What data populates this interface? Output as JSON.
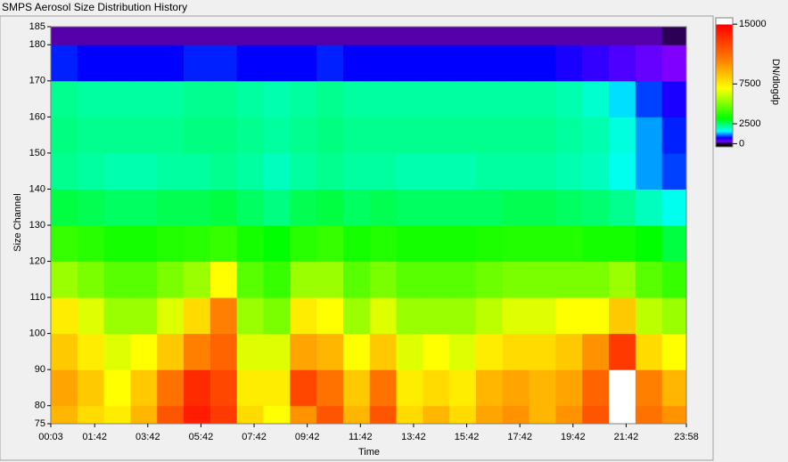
{
  "chart_data": {
    "type": "heatmap",
    "title": "SMPS Aerosol Size Distribution History",
    "xlabel": "Time",
    "ylabel": "Size Channel",
    "colorbar_label": "DN/dlogdp",
    "xlim": [
      3,
      1438
    ],
    "xticks": [
      {
        "value": 3,
        "label": "00:03"
      },
      {
        "value": 102,
        "label": "01:42"
      },
      {
        "value": 222,
        "label": "03:42"
      },
      {
        "value": 342,
        "label": "05:42"
      },
      {
        "value": 462,
        "label": "07:42"
      },
      {
        "value": 582,
        "label": "09:42"
      },
      {
        "value": 702,
        "label": "11:42"
      },
      {
        "value": 822,
        "label": "13:42"
      },
      {
        "value": 942,
        "label": "15:42"
      },
      {
        "value": 1062,
        "label": "17:42"
      },
      {
        "value": 1182,
        "label": "19:42"
      },
      {
        "value": 1302,
        "label": "21:42"
      },
      {
        "value": 1438,
        "label": "23:58"
      }
    ],
    "ylim": [
      75,
      185
    ],
    "yticks": [
      75,
      80,
      90,
      100,
      110,
      120,
      130,
      140,
      150,
      160,
      170,
      180,
      185
    ],
    "xbins": [
      3,
      63,
      123,
      183,
      243,
      303,
      363,
      423,
      483,
      543,
      603,
      663,
      723,
      783,
      843,
      903,
      963,
      1023,
      1083,
      1143,
      1203,
      1263,
      1323,
      1383,
      1438
    ],
    "ybins": [
      75,
      80,
      90,
      100,
      110,
      120,
      130,
      140,
      150,
      160,
      170,
      180,
      185
    ],
    "values": [
      [
        9000,
        8000,
        7500,
        9000,
        12000,
        14000,
        13000,
        8000,
        7000,
        10000,
        12000,
        9000,
        12000,
        8000,
        9000,
        8000,
        9500,
        10000,
        9000,
        10000,
        12000,
        16000,
        11000,
        10000
      ],
      [
        9500,
        8500,
        7000,
        8500,
        11000,
        13500,
        12500,
        7500,
        7500,
        12500,
        11000,
        8500,
        11000,
        7500,
        8000,
        7500,
        9000,
        9500,
        9000,
        9500,
        11500,
        15500,
        10500,
        9000
      ],
      [
        8500,
        7500,
        6500,
        7000,
        8500,
        10500,
        11500,
        6500,
        6500,
        9500,
        9000,
        7000,
        8500,
        6500,
        7000,
        6500,
        7500,
        8000,
        8000,
        8500,
        10000,
        13000,
        8000,
        7000
      ],
      [
        7500,
        6500,
        5500,
        5500,
        6500,
        8000,
        10500,
        5500,
        5000,
        7500,
        7000,
        5500,
        6500,
        5500,
        5500,
        5500,
        6000,
        6500,
        6500,
        7000,
        7000,
        8500,
        6000,
        5500
      ],
      [
        5500,
        5000,
        4500,
        4500,
        5000,
        5500,
        7000,
        4500,
        4000,
        5500,
        5500,
        4500,
        5000,
        4500,
        4500,
        4500,
        4800,
        5000,
        5000,
        5000,
        5000,
        5500,
        4500,
        4000
      ],
      [
        4000,
        3800,
        3500,
        3500,
        3700,
        3800,
        4000,
        3500,
        3200,
        3800,
        4000,
        3500,
        3700,
        3500,
        3500,
        3500,
        3600,
        3700,
        3700,
        3700,
        3500,
        3500,
        3200,
        2800
      ],
      [
        2800,
        2700,
        2600,
        2600,
        2700,
        2700,
        2800,
        2600,
        2400,
        2700,
        2800,
        2600,
        2700,
        2600,
        2600,
        2600,
        2600,
        2700,
        2700,
        2600,
        2500,
        2300,
        2000,
        1700
      ],
      [
        2300,
        2200,
        2100,
        2100,
        2200,
        2200,
        2300,
        2200,
        2000,
        2200,
        2300,
        2200,
        2200,
        2100,
        2100,
        2100,
        2200,
        2200,
        2200,
        2100,
        2000,
        1700,
        1300,
        1000
      ],
      [
        2400,
        2300,
        2300,
        2300,
        2300,
        2400,
        2400,
        2300,
        2200,
        2300,
        2400,
        2300,
        2300,
        2300,
        2300,
        2300,
        2300,
        2300,
        2300,
        2200,
        2100,
        1800,
        1300,
        900
      ],
      [
        2300,
        2200,
        2200,
        2200,
        2200,
        2300,
        2300,
        2200,
        2100,
        2200,
        2300,
        2200,
        2200,
        2200,
        2200,
        2200,
        2200,
        2200,
        2200,
        2100,
        1900,
        1500,
        1000,
        700
      ],
      [
        900,
        800,
        800,
        800,
        800,
        900,
        900,
        800,
        800,
        800,
        900,
        800,
        800,
        800,
        800,
        800,
        800,
        800,
        800,
        700,
        600,
        500,
        400,
        300
      ],
      [
        200,
        200,
        200,
        200,
        200,
        200,
        200,
        200,
        200,
        200,
        200,
        200,
        200,
        200,
        200,
        200,
        200,
        200,
        200,
        200,
        200,
        200,
        200,
        100
      ]
    ],
    "zlim": [
      -400,
      15800
    ],
    "zticks": [
      0,
      2500,
      7500,
      15000
    ],
    "colorscale": [
      [
        0,
        "#000000"
      ],
      [
        300,
        "#8000ff"
      ],
      [
        800,
        "#0000ff"
      ],
      [
        1600,
        "#00ffff"
      ],
      [
        3200,
        "#00ff00"
      ],
      [
        7000,
        "#ffff00"
      ],
      [
        10500,
        "#ff8000"
      ],
      [
        15000,
        "#ff0000"
      ]
    ],
    "over_color": "#ffffff"
  }
}
